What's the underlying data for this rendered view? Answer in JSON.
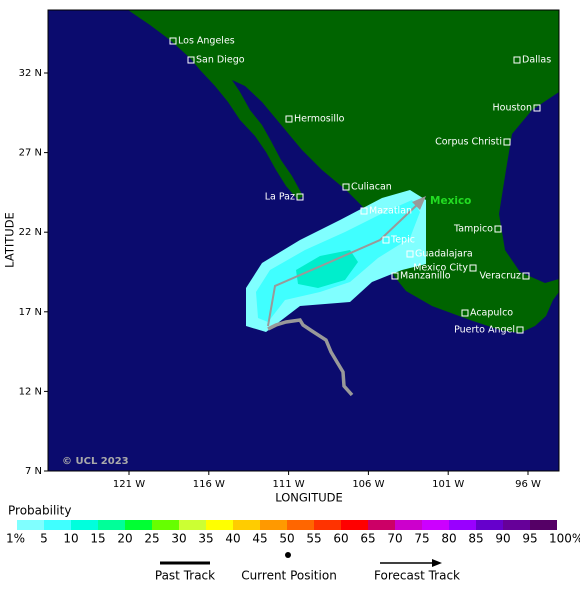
{
  "map": {
    "lat_ticks": [
      "32 N",
      "27 N",
      "22 N",
      "17 N",
      "12 N",
      "7 N"
    ],
    "lon_ticks": [
      "121 W",
      "116 W",
      "111 W",
      "106 W",
      "101 W",
      "96 W"
    ],
    "y_axis_label": "LATITUDE",
    "x_axis_label": "LONGITUDE",
    "copyright": "© UCL 2023",
    "country_label": "Mexico",
    "cities": [
      "Los Angeles",
      "San Diego",
      "Dallas",
      "Houston",
      "Hermosillo",
      "Corpus Christi",
      "Culiacan",
      "La Paz",
      "Mazatlan",
      "Tepic",
      "Tampico",
      "Guadalajara",
      "Mexico City",
      "Veracruz",
      "Manzanillo",
      "Acapulco",
      "Puerto Angel"
    ]
  },
  "probability_legend": {
    "title": "Probability",
    "labels": [
      "1%",
      "5",
      "10",
      "15",
      "20",
      "25",
      "30",
      "35",
      "40",
      "45",
      "50",
      "55",
      "60",
      "65",
      "70",
      "75",
      "80",
      "85",
      "90",
      "95",
      "100%"
    ],
    "colors": [
      "#80ffff",
      "#40ffff",
      "#00ffdd",
      "#00ff99",
      "#00ff33",
      "#66ff00",
      "#ccff33",
      "#ffff00",
      "#ffcc00",
      "#ff9900",
      "#ff6600",
      "#ff3300",
      "#ff0000",
      "#cc0066",
      "#cc00cc",
      "#cc00ff",
      "#9900ff",
      "#6600cc",
      "#660099",
      "#550066"
    ]
  },
  "track_legend": {
    "past": "Past Track",
    "current": "Current Position",
    "forecast": "Forecast Track"
  }
}
